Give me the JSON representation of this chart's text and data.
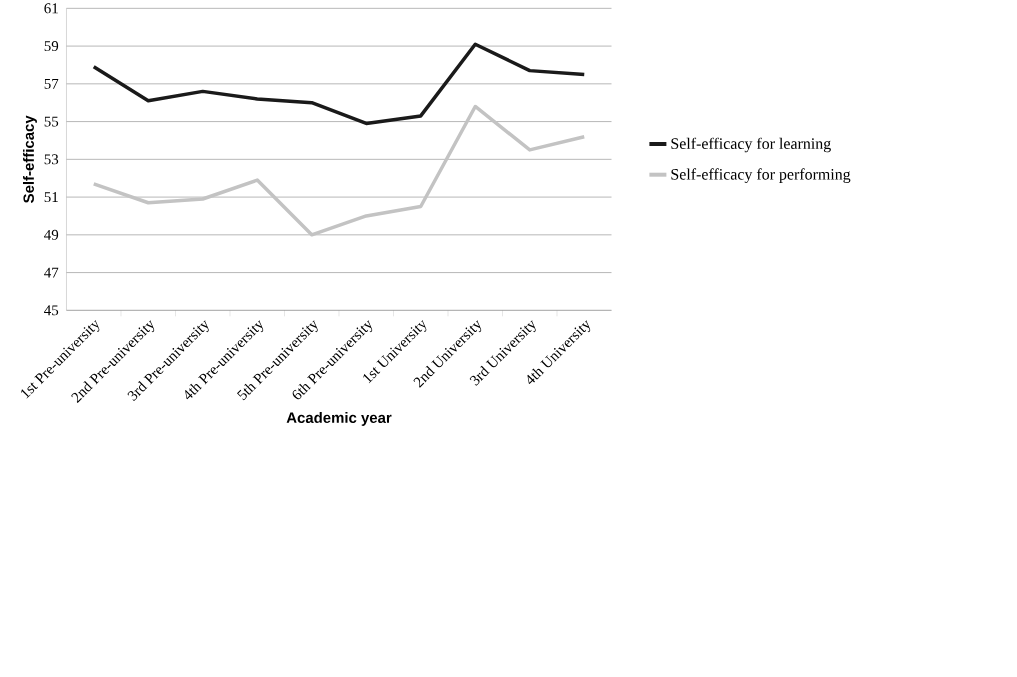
{
  "chart_data": {
    "type": "line",
    "xlabel": "Academic year",
    "ylabel": "Self-efficacy",
    "categories": [
      "1st Pre-university",
      "2nd Pre-university",
      "3rd Pre-university",
      "4th Pre-university",
      "5th Pre-university",
      "6th Pre-university",
      "1st University",
      "2nd University",
      "3rd University",
      "4th University"
    ],
    "series": [
      {
        "name": "Self-efficacy for learning",
        "color": "#1a1a1a",
        "values": [
          57.9,
          56.1,
          56.6,
          56.2,
          56.0,
          54.9,
          55.3,
          59.1,
          57.7,
          57.5
        ]
      },
      {
        "name": "Self-efficacy for performing",
        "color": "#c3c3c3",
        "values": [
          51.7,
          50.7,
          50.9,
          51.9,
          49.0,
          50.0,
          50.5,
          55.8,
          53.5,
          54.2
        ]
      }
    ],
    "ylim": [
      45,
      61
    ],
    "yticks": [
      45,
      47,
      49,
      51,
      53,
      55,
      57,
      59,
      61
    ],
    "grid": "y",
    "legend": "right",
    "marker": "none",
    "line_style": "solid"
  }
}
